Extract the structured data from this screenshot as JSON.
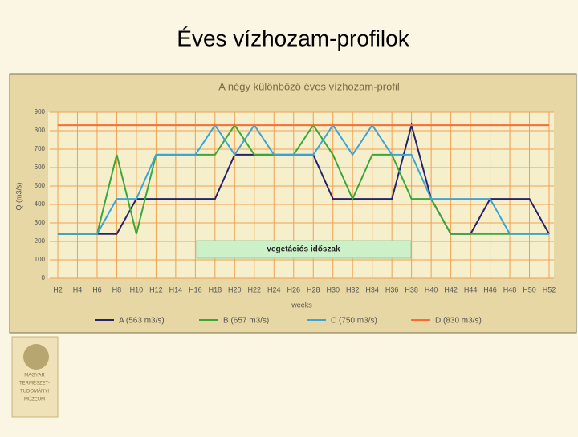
{
  "slide_title": "Éves vízhozam-profilok",
  "logo_lines": [
    "MAGYAR",
    "TERMÉSZET-",
    "TUDOMÁNYI",
    "MÚZEUM"
  ],
  "chart_data": {
    "type": "line",
    "title": "A négy különböző éves vízhozam-profil",
    "x_label": "weeks",
    "y_label": "Q (m3/s)",
    "annotation": "vegetációs időszak",
    "categories": [
      "H2",
      "H4",
      "H6",
      "H8",
      "H10",
      "H12",
      "H14",
      "H16",
      "H18",
      "H20",
      "H22",
      "H24",
      "H26",
      "H28",
      "H30",
      "H32",
      "H34",
      "H36",
      "H38",
      "H40",
      "H42",
      "H44",
      "H46",
      "H48",
      "H50",
      "H52"
    ],
    "series": [
      {
        "name": "A (563 m3/s)",
        "color": "#23236e",
        "values": [
          240,
          240,
          240,
          240,
          430,
          430,
          430,
          430,
          430,
          670,
          670,
          670,
          670,
          670,
          430,
          430,
          430,
          430,
          830,
          430,
          240,
          240,
          430,
          430,
          430,
          240
        ]
      },
      {
        "name": "B (657 m3/s)",
        "color": "#3aa83a",
        "values": [
          240,
          240,
          240,
          670,
          240,
          670,
          670,
          670,
          670,
          830,
          670,
          670,
          670,
          830,
          670,
          430,
          670,
          670,
          430,
          430,
          240,
          240,
          240,
          240,
          240,
          240
        ]
      },
      {
        "name": "C (750 m3/s)",
        "color": "#3ca4d6",
        "values": [
          240,
          240,
          240,
          430,
          430,
          670,
          670,
          670,
          830,
          670,
          830,
          670,
          670,
          670,
          830,
          670,
          830,
          670,
          670,
          430,
          430,
          430,
          430,
          240,
          240,
          240
        ]
      },
      {
        "name": "D (830 m3/s)",
        "color": "#ff6a30",
        "values": [
          830,
          830,
          830,
          830,
          830,
          830,
          830,
          830,
          830,
          830,
          830,
          830,
          830,
          830,
          830,
          830,
          830,
          830,
          830,
          830,
          830,
          830,
          830,
          830,
          830,
          830
        ]
      }
    ],
    "ylim": [
      0,
      900
    ],
    "yticks": [
      0,
      100,
      200,
      300,
      400,
      500,
      600,
      700,
      800,
      900
    ],
    "grid": true
  }
}
